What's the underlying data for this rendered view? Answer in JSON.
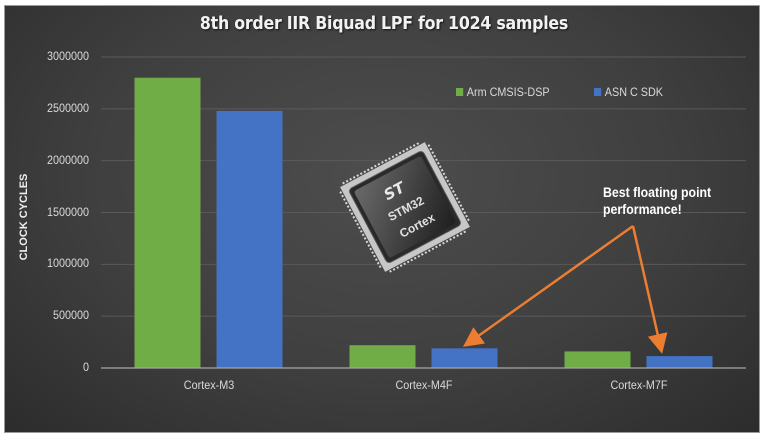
{
  "chart_data": {
    "type": "bar",
    "title": "8th order IIR Biquad LPF for 1024 samples",
    "xlabel": "",
    "ylabel": "CLOCK CYCLES",
    "categories": [
      "Cortex-M3",
      "Cortex-M4F",
      "Cortex-M7F"
    ],
    "series": [
      {
        "name": "Arm CMSIS-DSP",
        "color": "#70ad47",
        "values": [
          2800000,
          220000,
          160000
        ]
      },
      {
        "name": "ASN C SDK",
        "color": "#4472c4",
        "values": [
          2480000,
          190000,
          115000
        ]
      }
    ],
    "ylim": [
      0,
      3000000
    ],
    "yticks": [
      "0",
      "500000",
      "1000000",
      "1500000",
      "2000000",
      "2500000",
      "3000000"
    ],
    "grid": true,
    "legend_position": "top-right",
    "annotations": [
      {
        "text": "Best floating point performance!",
        "arrows_to": [
          "Cortex-M4F / ASN C SDK",
          "Cortex-M7F / ASN C SDK"
        ],
        "color": "#ed7d31"
      }
    ]
  },
  "image_overlay": {
    "label": "STM32 Cortex microcontroller chip"
  },
  "annotation": {
    "line1": "Best floating point",
    "line2": "performance!"
  },
  "legend": {
    "series1": "Arm CMSIS-DSP",
    "series2": "ASN C SDK"
  },
  "colors": {
    "green": "#70ad47",
    "blue": "#4472c4",
    "arrow": "#ed7d31",
    "background": "#404040"
  }
}
